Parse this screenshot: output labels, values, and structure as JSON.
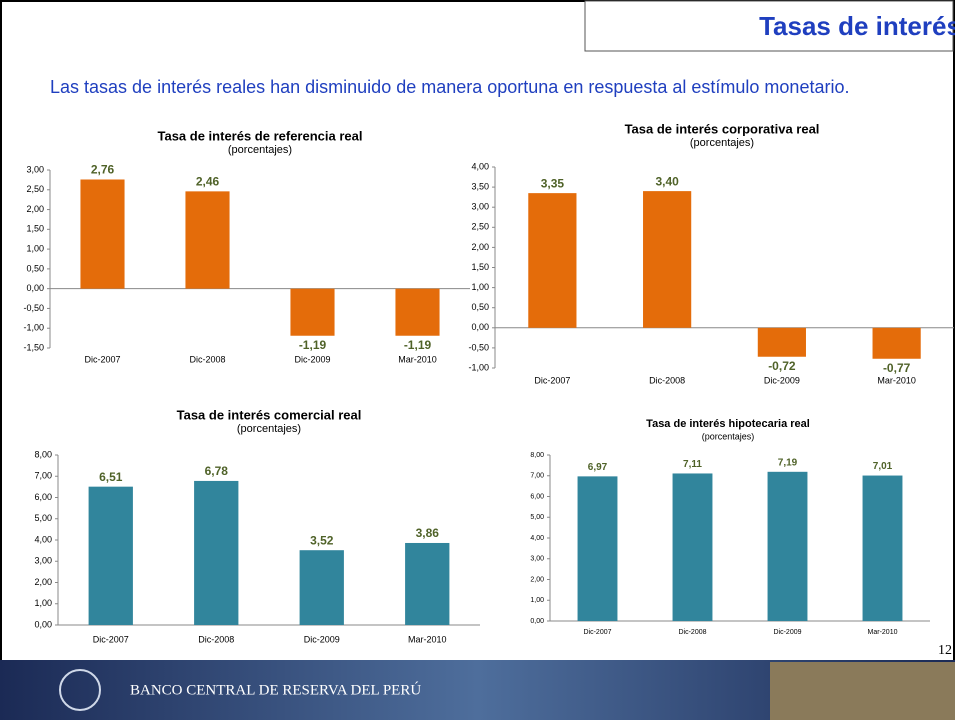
{
  "slide": {
    "title": "Tasas de interés",
    "text": "Las tasas de interés reales han disminuido de manera oportuna en respuesta al estímulo monetario.",
    "page": "12",
    "footer": "BANCO CENTRAL DE RESERVA DEL PERÚ"
  },
  "chart_data": [
    {
      "type": "bar",
      "title": "Tasa de interés de referencia real",
      "subtitle": "(porcentajes)",
      "categories": [
        "Dic-2007",
        "Dic-2008",
        "Dic-2009",
        "Mar-2010"
      ],
      "values": [
        2.76,
        2.46,
        -1.19,
        -1.19
      ],
      "value_labels": [
        "2,76",
        "2,46",
        "-1,19",
        "-1,19"
      ],
      "color": "#e46c0a",
      "label_color": "#4f6228",
      "ylim": [
        -1.5,
        3
      ],
      "yticks": [
        {
          "value": -1.5,
          "label": "-1,50"
        },
        {
          "value": -1,
          "label": "-1,00"
        },
        {
          "value": -0.5,
          "label": "-0,50"
        },
        {
          "value": 0,
          "label": "0,00"
        },
        {
          "value": 0.5,
          "label": "0,50"
        },
        {
          "value": 1,
          "label": "1,00"
        },
        {
          "value": 1.5,
          "label": "1,50"
        },
        {
          "value": 2,
          "label": "2,00"
        },
        {
          "value": 2.5,
          "label": "2,50"
        },
        {
          "value": 3,
          "label": "3,00"
        }
      ]
    },
    {
      "type": "bar",
      "title": "Tasa de interés corporativa real",
      "subtitle": "(porcentajes)",
      "categories": [
        "Dic-2007",
        "Dic-2008",
        "Dic-2009",
        "Mar-2010"
      ],
      "values": [
        3.35,
        3.4,
        -0.72,
        -0.77
      ],
      "value_labels": [
        "3,35",
        "3,40",
        "-0,72",
        "-0,77"
      ],
      "color": "#e46c0a",
      "label_color": "#4f6228",
      "ylim": [
        -1,
        4
      ],
      "yticks": [
        {
          "value": -1,
          "label": "-1,00"
        },
        {
          "value": -0.5,
          "label": "-0,50"
        },
        {
          "value": 0,
          "label": "0,00"
        },
        {
          "value": 0.5,
          "label": "0,50"
        },
        {
          "value": 1,
          "label": "1,00"
        },
        {
          "value": 1.5,
          "label": "1,50"
        },
        {
          "value": 2,
          "label": "2,00"
        },
        {
          "value": 2.5,
          "label": "2,50"
        },
        {
          "value": 3,
          "label": "3,00"
        },
        {
          "value": 3.5,
          "label": "3,50"
        },
        {
          "value": 4,
          "label": "4,00"
        }
      ]
    },
    {
      "type": "bar",
      "title": "Tasa de interés comercial real",
      "subtitle": "(porcentajes)",
      "categories": [
        "Dic-2007",
        "Dic-2008",
        "Dic-2009",
        "Mar-2010"
      ],
      "values": [
        6.51,
        6.78,
        3.52,
        3.86
      ],
      "value_labels": [
        "6,51",
        "6,78",
        "3,52",
        "3,86"
      ],
      "color": "#31859c",
      "label_color": "#4f6228",
      "ylim": [
        0,
        8
      ],
      "yticks": [
        {
          "value": 0,
          "label": "0,00"
        },
        {
          "value": 1,
          "label": "1,00"
        },
        {
          "value": 2,
          "label": "2,00"
        },
        {
          "value": 3,
          "label": "3,00"
        },
        {
          "value": 4,
          "label": "4,00"
        },
        {
          "value": 5,
          "label": "5,00"
        },
        {
          "value": 6,
          "label": "6,00"
        },
        {
          "value": 7,
          "label": "7,00"
        },
        {
          "value": 8,
          "label": "8,00"
        }
      ]
    },
    {
      "type": "bar",
      "title": "Tasa de interés hipotecaria real",
      "subtitle": "(porcentajes)",
      "categories": [
        "Dic-2007",
        "Dic-2008",
        "Dic-2009",
        "Mar-2010"
      ],
      "values": [
        6.97,
        7.11,
        7.19,
        7.01
      ],
      "value_labels": [
        "6,97",
        "7,11",
        "7,19",
        "7,01"
      ],
      "color": "#31859c",
      "label_color": "#4f6228",
      "ylim": [
        0,
        8
      ],
      "yticks": [
        {
          "value": 0,
          "label": "0,00"
        },
        {
          "value": 1,
          "label": "1,00"
        },
        {
          "value": 2,
          "label": "2,00"
        },
        {
          "value": 3,
          "label": "3,00"
        },
        {
          "value": 4,
          "label": "4,00"
        },
        {
          "value": 5,
          "label": "5,00"
        },
        {
          "value": 6,
          "label": "6,00"
        },
        {
          "value": 7,
          "label": "7,00"
        },
        {
          "value": 8,
          "label": "8,00"
        }
      ]
    }
  ]
}
